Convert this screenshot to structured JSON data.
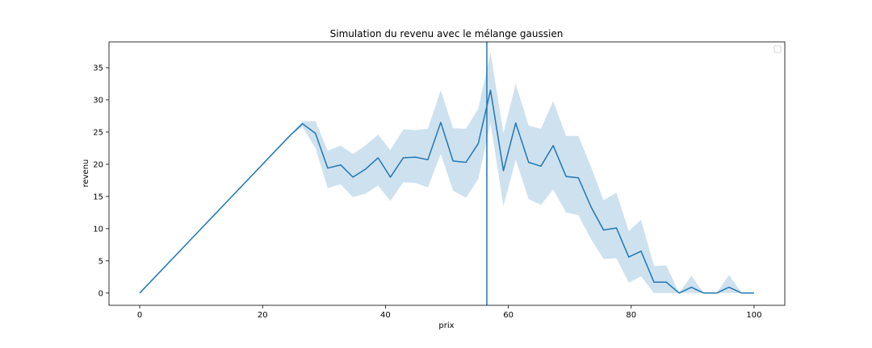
{
  "chart_data": {
    "type": "line",
    "title": "Simulation du revenu avec le mélange gaussien",
    "xlabel": "prix",
    "ylabel": "revenu",
    "xlim": [
      -5,
      105
    ],
    "ylim": [
      -1.9,
      39
    ],
    "xticks": [
      0,
      20,
      40,
      60,
      80,
      100
    ],
    "yticks": [
      0,
      5,
      10,
      15,
      20,
      25,
      30,
      35
    ],
    "grid": false,
    "legend": "top-right (empty)",
    "colors": {
      "line": "#1f77b4",
      "band": "#1f77b4",
      "vline": "#1f77b4"
    },
    "vline_x": 56.5,
    "series": [
      {
        "x": [
          0,
          24.5,
          26.5,
          28.6,
          30.6,
          32.7,
          34.7,
          36.7,
          38.8,
          40.8,
          42.9,
          44.9,
          46.9,
          49.0,
          51.0,
          53.1,
          55.1,
          57.1,
          59.2,
          61.2,
          63.3,
          65.3,
          67.3,
          69.4,
          71.4,
          73.5,
          75.5,
          77.6,
          79.6,
          81.6,
          83.7,
          85.7,
          87.8,
          89.8,
          91.8,
          93.9,
          95.9,
          98.0,
          100
        ],
        "y": [
          0,
          24.5,
          26.3,
          24.8,
          19.4,
          19.9,
          18.0,
          19.2,
          21.0,
          18.0,
          21.0,
          21.1,
          20.7,
          26.5,
          20.5,
          20.3,
          23.2,
          31.5,
          19.0,
          26.4,
          20.3,
          19.7,
          22.9,
          18.1,
          17.9,
          13.3,
          9.8,
          10.1,
          5.6,
          6.5,
          1.7,
          1.7,
          0.0,
          0.9,
          0.0,
          0.0,
          0.9,
          0.0,
          0.0
        ],
        "lower": [
          0,
          24.5,
          25.8,
          22.5,
          16.3,
          16.9,
          14.9,
          15.4,
          16.7,
          14.3,
          17.2,
          17.1,
          16.4,
          21.6,
          15.9,
          14.8,
          17.7,
          26.4,
          13.5,
          20.7,
          14.6,
          13.7,
          16.1,
          12.5,
          12.1,
          8.3,
          5.3,
          5.4,
          1.6,
          2.6,
          0.0,
          0.0,
          0.0,
          0.0,
          0.0,
          0.0,
          0.0,
          0.0,
          0.0
        ],
        "upper": [
          0,
          24.5,
          26.7,
          26.7,
          22.1,
          22.9,
          21.6,
          22.9,
          24.6,
          22.2,
          25.4,
          25.3,
          25.5,
          31.5,
          25.6,
          25.5,
          28.6,
          37.3,
          24.8,
          32.5,
          26.0,
          25.5,
          29.8,
          24.4,
          24.4,
          19.5,
          14.4,
          15.6,
          9.6,
          11.4,
          4.2,
          4.3,
          0.0,
          2.7,
          0.0,
          0.0,
          2.8,
          0.0,
          0.0
        ]
      }
    ]
  }
}
